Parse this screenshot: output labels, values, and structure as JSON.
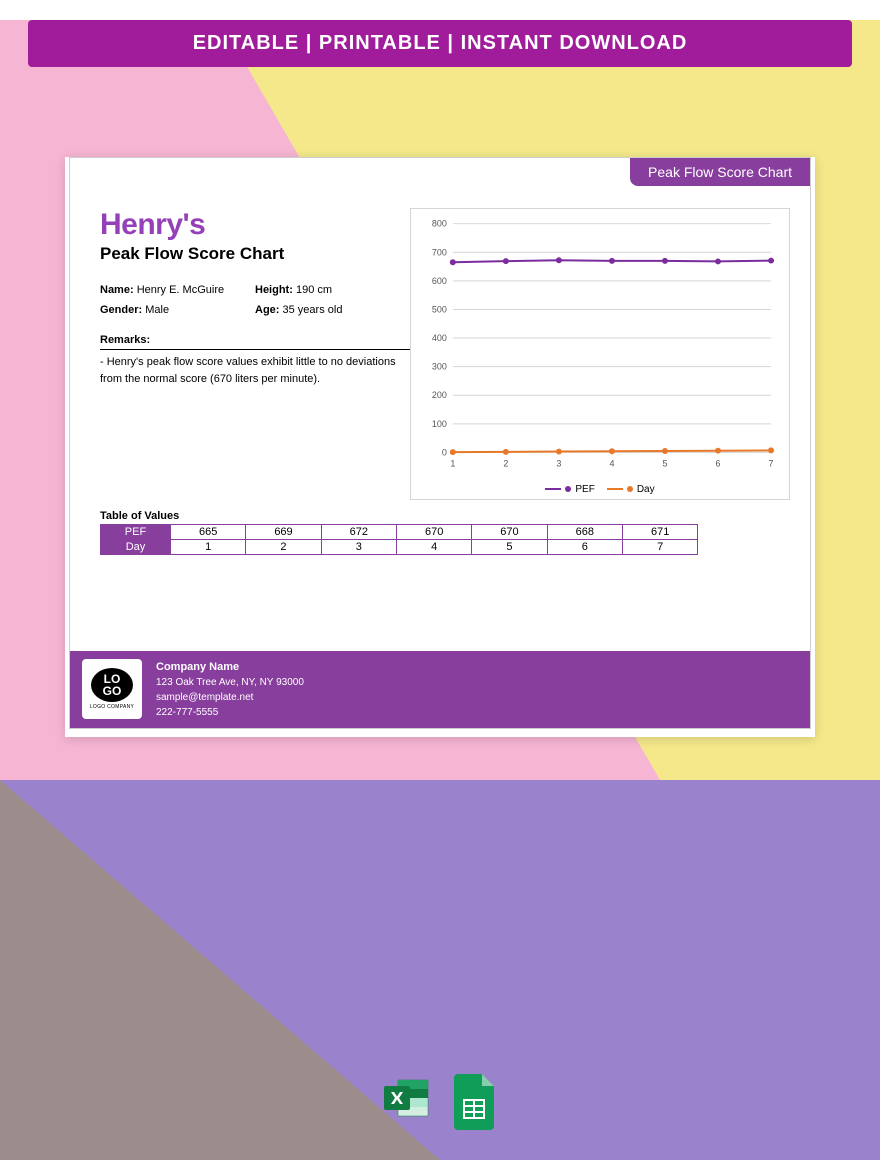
{
  "banner": "EDITABLE  |  PRINTABLE  |  INSTANT DOWNLOAD",
  "tab_title": "Peak Flow Score Chart",
  "person_name": "Henry's",
  "subtitle": "Peak Flow Score Chart",
  "info": {
    "name_label": "Name:",
    "name_value": "Henry E. McGuire",
    "height_label": "Height:",
    "height_value": "190 cm",
    "gender_label": "Gender:",
    "gender_value": "Male",
    "age_label": "Age:",
    "age_value": "35 years old"
  },
  "remarks_label": "Remarks:",
  "remarks_text": "- Henry's peak flow score values exhibit little to no deviations from the normal score (670 liters per minute).",
  "chart": {
    "type": "line",
    "ylim": [
      0,
      800
    ],
    "ytick_step": 100,
    "xcategories": [
      1,
      2,
      3,
      4,
      5,
      6,
      7
    ],
    "series": [
      {
        "name": "PEF",
        "color": "#7b2d9e",
        "values": [
          665,
          669,
          672,
          670,
          670,
          668,
          671
        ]
      },
      {
        "name": "Day",
        "color": "#e8792b",
        "values": [
          1,
          2,
          3,
          4,
          5,
          6,
          7
        ]
      }
    ],
    "grid_color": "#d5d5d5",
    "axis_color": "#999999",
    "background_color": "#ffffff",
    "label_fontsize": 10
  },
  "table": {
    "title": "Table of Values",
    "rows": [
      {
        "header": "PEF",
        "cells": [
          "665",
          "669",
          "672",
          "670",
          "670",
          "668",
          "671"
        ]
      },
      {
        "header": "Day",
        "cells": [
          "1",
          "2",
          "3",
          "4",
          "5",
          "6",
          "7"
        ]
      }
    ]
  },
  "footer": {
    "company": "Company Name",
    "address": "123 Oak Tree Ave, NY, NY 93000",
    "email": "sample@template.net",
    "phone": "222-777-5555",
    "logo_text": "LO\nGO",
    "logo_caption": "LOGO COMPANY"
  },
  "colors": {
    "banner_bg": "#a01c9a",
    "primary_purple": "#883e9c",
    "title_purple": "#9440b8",
    "bg_pink": "#f5b5d3",
    "bg_yellow": "#f4e88a",
    "bg_purple_bottom": "#9b82cc",
    "bg_gray": "#9c8d8c"
  },
  "icons": {
    "excel": "excel-icon",
    "sheets": "google-sheets-icon"
  }
}
